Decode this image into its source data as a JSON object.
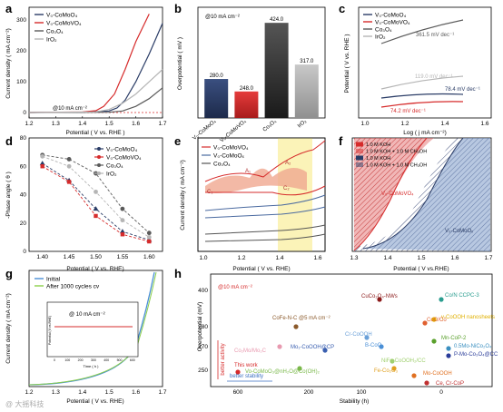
{
  "panels": [
    "a",
    "b",
    "c",
    "d",
    "e",
    "f",
    "g",
    "h"
  ],
  "colors": {
    "navy": "#2a3c66",
    "red": "#d62b2b",
    "gray": "#5a5a5a",
    "light": "#b5b5b5",
    "blue": "#4a8fd6",
    "green": "#8ccf4a"
  },
  "chart_data": [
    {
      "panel": "a",
      "type": "line",
      "xlabel": "Potential ( V vs. RHE )",
      "ylabel": "Current density ( mA cm⁻²)",
      "xlim": [
        1.2,
        1.7
      ],
      "xticks": [
        "1.2",
        "1.3",
        "1.4",
        "1.5",
        "1.6",
        "1.7"
      ],
      "yticks": [
        "0",
        "100",
        "200",
        "300"
      ],
      "annotation": "@10 mA cm⁻²",
      "series": [
        {
          "name": "V₀-CoMoO₄",
          "x": [
            1.2,
            1.4,
            1.5,
            1.53,
            1.56,
            1.6,
            1.65,
            1.7
          ],
          "y": [
            0,
            1,
            5,
            15,
            40,
            100,
            190,
            290
          ]
        },
        {
          "name": "V₀-CoMoVO₄",
          "x": [
            1.2,
            1.4,
            1.45,
            1.48,
            1.52,
            1.56,
            1.6,
            1.65
          ],
          "y": [
            0,
            2,
            6,
            20,
            60,
            140,
            230,
            320
          ]
        },
        {
          "name": "Co₃O₄",
          "x": [
            1.2,
            1.5,
            1.55,
            1.6,
            1.65,
            1.7
          ],
          "y": [
            0,
            1,
            5,
            20,
            45,
            80
          ]
        },
        {
          "name": "IrO₂",
          "x": [
            1.2,
            1.45,
            1.5,
            1.55,
            1.6,
            1.65,
            1.7
          ],
          "y": [
            0,
            2,
            10,
            30,
            60,
            100,
            140
          ]
        }
      ]
    },
    {
      "panel": "b",
      "type": "bar",
      "ylabel": "Overpotential ( mV )",
      "annotation": "@10 mA cm⁻²",
      "categories": [
        "V₀-CoMoO₄",
        "V₀-CoMoVO₄",
        "Co₃O₄",
        "IrO₂"
      ],
      "values": [
        280.0,
        248.0,
        424.0,
        317.0
      ],
      "value_labels": [
        "280.0",
        "248.0",
        "424.0",
        "317.0"
      ]
    },
    {
      "panel": "c",
      "type": "line",
      "xlabel": "Log ( j mA cm⁻²)",
      "ylabel": "Potential ( V vs. RHE )",
      "xticks": [
        "1.0",
        "1.2",
        "1.4",
        "1.6"
      ],
      "series": [
        {
          "name": "V₀-CoMoO₄",
          "slope_label": "78.4 mV dec⁻¹"
        },
        {
          "name": "V₀-CoMoVO₄",
          "slope_label": "74.2 mV dec⁻¹"
        },
        {
          "name": "Co₃O₄",
          "slope_label": "361.5 mV dec⁻¹"
        },
        {
          "name": "IrO₂",
          "slope_label": "119.0 mV dec⁻¹"
        }
      ]
    },
    {
      "panel": "d",
      "type": "line",
      "xlabel": "Potential ( V vs. RHE)",
      "ylabel": "-Phase angle ( θ )",
      "xlim": [
        1.375,
        1.625
      ],
      "ylim": [
        0,
        80
      ],
      "xticks": [
        "1.40",
        "1.45",
        "1.50",
        "1.55",
        "1.60"
      ],
      "yticks": [
        "0",
        "20",
        "40",
        "60",
        "80"
      ],
      "x": [
        1.4,
        1.45,
        1.5,
        1.55,
        1.6
      ],
      "series": [
        {
          "name": "V₀-CoMoO₄",
          "values": [
            62,
            50,
            30,
            14,
            8
          ]
        },
        {
          "name": "V₀-CoMoVO₄",
          "values": [
            60,
            49,
            25,
            12,
            7
          ]
        },
        {
          "name": "Co₃O₄",
          "values": [
            68,
            65,
            55,
            30,
            13
          ]
        },
        {
          "name": "IrO₂",
          "values": [
            67,
            60,
            42,
            22,
            10
          ]
        }
      ]
    },
    {
      "panel": "e",
      "type": "line",
      "xlabel": "Potential ( V vs. RHE)",
      "ylabel": "Current density ( mA cm⁻²)",
      "xticks": [
        "1.0",
        "1.2",
        "1.4",
        "1.6"
      ],
      "series": [
        {
          "name": "V₀-CoMoVO₄"
        },
        {
          "name": "V₀-CoMoOₓ"
        },
        {
          "name": "Co₃O₄"
        }
      ],
      "labels": [
        "A₁",
        "A₂",
        "C₁",
        "C₂"
      ]
    },
    {
      "panel": "f",
      "type": "area",
      "xlabel": "Potential ( V vs.RHE)",
      "xticks": [
        "1.3",
        "1.4",
        "1.5",
        "1.6",
        "1.7"
      ],
      "series": [
        {
          "name": "1.0 M KOH"
        },
        {
          "name": "1.0 M KOH + 1.0 M CH₃OH"
        },
        {
          "name": "1.0 M KOH"
        },
        {
          "name": "1.0 M KOH + 1.0 M CH₃OH"
        }
      ],
      "labels": [
        "V₀-CoMoVO₄",
        "V₀-CoMoOₓ"
      ]
    },
    {
      "panel": "g",
      "type": "line",
      "xlabel": "Potential ( V vs. RHE)",
      "ylabel": "Current density ( mA cm⁻²)",
      "xticks": [
        "1.2",
        "1.3",
        "1.4",
        "1.5",
        "1.6",
        "1.7"
      ],
      "series": [
        {
          "name": "Initial"
        },
        {
          "name": "After 1000 cycles cv"
        }
      ],
      "inset": {
        "annotation": "@ 10 mA cm⁻²",
        "xlabel": "Time ( h )",
        "ylabel": "Potential (V vs.RHE)",
        "xticks": [
          "0",
          "100",
          "200",
          "300",
          "400",
          "500",
          "600"
        ]
      }
    },
    {
      "panel": "h",
      "type": "scatter",
      "xlabel": "Stability (h)",
      "ylabel": "Overpotential (mV)",
      "annotation": "@10 mA cm⁻²",
      "xticks": [
        "600",
        "200",
        "100",
        "0"
      ],
      "yticks": [
        "250",
        "270",
        "280",
        "400"
      ],
      "arrow_labels": [
        "better activity",
        "better stability"
      ],
      "points": [
        {
          "label": "This work",
          "color": "#d62b2b"
        },
        {
          "label": "CuCo₂O₄-NWs",
          "color": "#8b1a1a"
        },
        {
          "label": "Co/N CCPC-3",
          "color": "#2a9d8f"
        },
        {
          "label": "γ-CoOOH nanosheets",
          "color": "#e0b000"
        },
        {
          "label": "CoFe-N-C @5 mA cm⁻²",
          "color": "#8b5a2b"
        },
        {
          "label": "Co₂Mo/Mo₂C",
          "color": "#e89ab0"
        },
        {
          "label": "Mo₁-CoOOH@CP",
          "color": "#3a5fb0"
        },
        {
          "label": "Cr-CoOOH",
          "color": "#6aa0d8"
        },
        {
          "label": "B-CoO",
          "color": "#4a8fd6"
        },
        {
          "label": "CoO/Co",
          "color": "#e06030"
        },
        {
          "label": "Mn-CoP-2",
          "color": "#5aa02c"
        },
        {
          "label": "0.5Mo-NiCo₂O₄",
          "color": "#3a8fc0"
        },
        {
          "label": "P-Mo-Co₃O₄@CC",
          "color": "#2a3c99"
        },
        {
          "label": "NiFe-CoOOH₂/CC",
          "color": "#a0d070"
        },
        {
          "label": "Fe-Co₂O₃",
          "color": "#e0a020"
        },
        {
          "label": "Vo-CoMoO₃@nH₂O@Co(OH)₂",
          "color": "#7ab84a"
        },
        {
          "label": "Mo-CoOOH",
          "color": "#e07020"
        },
        {
          "label": "Ce, Cr-CoP",
          "color": "#c03030"
        }
      ]
    }
  ],
  "watermark": "@ 大摇科技"
}
